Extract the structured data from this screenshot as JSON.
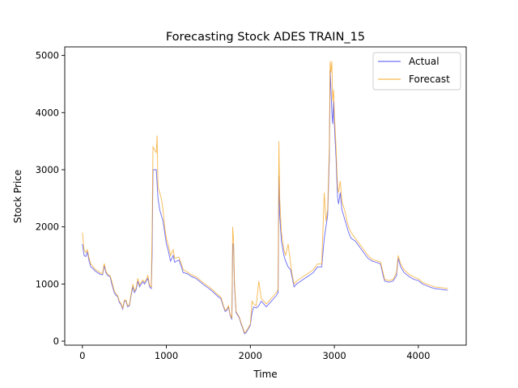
{
  "chart_data": {
    "type": "line",
    "title": "Forecasting Stock ADES TRAIN_15",
    "xlabel": "Time",
    "ylabel": "Stock Price",
    "xlim": [
      -210,
      4570
    ],
    "ylim": [
      -70,
      5150
    ],
    "xticks": [
      0,
      1000,
      2000,
      3000,
      4000
    ],
    "yticks": [
      0,
      1000,
      2000,
      3000,
      4000,
      5000
    ],
    "grid": false,
    "legend_position": "top-right",
    "series": [
      {
        "name": "Actual",
        "color": "#4d4df2",
        "points": [
          [
            0,
            1700
          ],
          [
            20,
            1500
          ],
          [
            40,
            1480
          ],
          [
            60,
            1560
          ],
          [
            80,
            1400
          ],
          [
            100,
            1300
          ],
          [
            120,
            1280
          ],
          [
            150,
            1230
          ],
          [
            180,
            1200
          ],
          [
            210,
            1170
          ],
          [
            240,
            1160
          ],
          [
            260,
            1320
          ],
          [
            280,
            1200
          ],
          [
            300,
            1150
          ],
          [
            330,
            1130
          ],
          [
            350,
            1000
          ],
          [
            380,
            850
          ],
          [
            400,
            800
          ],
          [
            420,
            780
          ],
          [
            440,
            680
          ],
          [
            460,
            640
          ],
          [
            480,
            560
          ],
          [
            500,
            700
          ],
          [
            520,
            700
          ],
          [
            540,
            600
          ],
          [
            560,
            620
          ],
          [
            580,
            800
          ],
          [
            600,
            950
          ],
          [
            620,
            850
          ],
          [
            640,
            900
          ],
          [
            660,
            1050
          ],
          [
            680,
            950
          ],
          [
            700,
            1000
          ],
          [
            720,
            1040
          ],
          [
            740,
            1000
          ],
          [
            760,
            1050
          ],
          [
            780,
            1100
          ],
          [
            800,
            950
          ],
          [
            820,
            920
          ],
          [
            830,
            1500
          ],
          [
            840,
            3000
          ],
          [
            880,
            3000
          ],
          [
            900,
            2500
          ],
          [
            920,
            2300
          ],
          [
            940,
            2200
          ],
          [
            960,
            2100
          ],
          [
            980,
            1900
          ],
          [
            1000,
            1700
          ],
          [
            1020,
            1600
          ],
          [
            1050,
            1400
          ],
          [
            1080,
            1500
          ],
          [
            1100,
            1380
          ],
          [
            1120,
            1400
          ],
          [
            1150,
            1420
          ],
          [
            1180,
            1300
          ],
          [
            1200,
            1200
          ],
          [
            1250,
            1180
          ],
          [
            1300,
            1130
          ],
          [
            1350,
            1100
          ],
          [
            1400,
            1040
          ],
          [
            1450,
            980
          ],
          [
            1500,
            930
          ],
          [
            1550,
            870
          ],
          [
            1600,
            800
          ],
          [
            1650,
            740
          ],
          [
            1680,
            600
          ],
          [
            1700,
            520
          ],
          [
            1720,
            540
          ],
          [
            1740,
            600
          ],
          [
            1760,
            450
          ],
          [
            1780,
            380
          ],
          [
            1790,
            1700
          ],
          [
            1800,
            1700
          ],
          [
            1810,
            1000
          ],
          [
            1830,
            500
          ],
          [
            1850,
            450
          ],
          [
            1870,
            400
          ],
          [
            1890,
            300
          ],
          [
            1910,
            220
          ],
          [
            1930,
            130
          ],
          [
            1950,
            150
          ],
          [
            1970,
            200
          ],
          [
            2000,
            280
          ],
          [
            2020,
            500
          ],
          [
            2040,
            600
          ],
          [
            2070,
            580
          ],
          [
            2100,
            620
          ],
          [
            2130,
            700
          ],
          [
            2160,
            650
          ],
          [
            2190,
            600
          ],
          [
            2220,
            650
          ],
          [
            2250,
            700
          ],
          [
            2280,
            750
          ],
          [
            2310,
            800
          ],
          [
            2330,
            850
          ],
          [
            2340,
            2900
          ],
          [
            2350,
            2200
          ],
          [
            2370,
            1750
          ],
          [
            2400,
            1500
          ],
          [
            2420,
            1400
          ],
          [
            2450,
            1300
          ],
          [
            2480,
            1250
          ],
          [
            2500,
            1100
          ],
          [
            2520,
            950
          ],
          [
            2550,
            1000
          ],
          [
            2600,
            1050
          ],
          [
            2650,
            1100
          ],
          [
            2700,
            1150
          ],
          [
            2750,
            1200
          ],
          [
            2800,
            1300
          ],
          [
            2850,
            1300
          ],
          [
            2880,
            1800
          ],
          [
            2900,
            2000
          ],
          [
            2920,
            2200
          ],
          [
            2940,
            3200
          ],
          [
            2950,
            4750
          ],
          [
            2960,
            4400
          ],
          [
            2970,
            4000
          ],
          [
            2980,
            3800
          ],
          [
            2990,
            4200
          ],
          [
            3000,
            3800
          ],
          [
            3010,
            3500
          ],
          [
            3020,
            3200
          ],
          [
            3030,
            2800
          ],
          [
            3040,
            2500
          ],
          [
            3050,
            2400
          ],
          [
            3070,
            2600
          ],
          [
            3090,
            2300
          ],
          [
            3110,
            2200
          ],
          [
            3130,
            2100
          ],
          [
            3150,
            2000
          ],
          [
            3170,
            1900
          ],
          [
            3200,
            1800
          ],
          [
            3250,
            1750
          ],
          [
            3300,
            1650
          ],
          [
            3350,
            1550
          ],
          [
            3400,
            1450
          ],
          [
            3450,
            1400
          ],
          [
            3500,
            1380
          ],
          [
            3550,
            1350
          ],
          [
            3580,
            1150
          ],
          [
            3600,
            1050
          ],
          [
            3650,
            1030
          ],
          [
            3700,
            1050
          ],
          [
            3740,
            1150
          ],
          [
            3760,
            1450
          ],
          [
            3790,
            1300
          ],
          [
            3830,
            1200
          ],
          [
            3900,
            1120
          ],
          [
            3950,
            1080
          ],
          [
            4000,
            1060
          ],
          [
            4050,
            1000
          ],
          [
            4100,
            970
          ],
          [
            4150,
            940
          ],
          [
            4200,
            920
          ],
          [
            4250,
            910
          ],
          [
            4300,
            900
          ],
          [
            4350,
            890
          ]
        ]
      },
      {
        "name": "Forecast",
        "color": "#f5a623",
        "points": [
          [
            0,
            1900
          ],
          [
            20,
            1600
          ],
          [
            40,
            1550
          ],
          [
            60,
            1600
          ],
          [
            80,
            1450
          ],
          [
            100,
            1350
          ],
          [
            120,
            1320
          ],
          [
            150,
            1260
          ],
          [
            180,
            1230
          ],
          [
            210,
            1200
          ],
          [
            240,
            1180
          ],
          [
            260,
            1360
          ],
          [
            280,
            1230
          ],
          [
            300,
            1170
          ],
          [
            330,
            1150
          ],
          [
            350,
            1050
          ],
          [
            380,
            880
          ],
          [
            400,
            830
          ],
          [
            420,
            800
          ],
          [
            440,
            700
          ],
          [
            460,
            660
          ],
          [
            480,
            580
          ],
          [
            500,
            720
          ],
          [
            520,
            720
          ],
          [
            540,
            620
          ],
          [
            560,
            640
          ],
          [
            580,
            830
          ],
          [
            600,
            1000
          ],
          [
            620,
            880
          ],
          [
            640,
            930
          ],
          [
            660,
            1100
          ],
          [
            680,
            980
          ],
          [
            700,
            1030
          ],
          [
            720,
            1070
          ],
          [
            740,
            1030
          ],
          [
            760,
            1080
          ],
          [
            780,
            1150
          ],
          [
            800,
            980
          ],
          [
            820,
            950
          ],
          [
            830,
            1900
          ],
          [
            840,
            3400
          ],
          [
            880,
            3300
          ],
          [
            890,
            3600
          ],
          [
            900,
            2700
          ],
          [
            920,
            2600
          ],
          [
            940,
            2500
          ],
          [
            960,
            2300
          ],
          [
            980,
            2000
          ],
          [
            1000,
            1800
          ],
          [
            1020,
            1700
          ],
          [
            1050,
            1500
          ],
          [
            1080,
            1600
          ],
          [
            1100,
            1450
          ],
          [
            1120,
            1460
          ],
          [
            1150,
            1470
          ],
          [
            1180,
            1350
          ],
          [
            1200,
            1250
          ],
          [
            1250,
            1210
          ],
          [
            1300,
            1160
          ],
          [
            1350,
            1130
          ],
          [
            1400,
            1070
          ],
          [
            1450,
            1010
          ],
          [
            1500,
            960
          ],
          [
            1550,
            900
          ],
          [
            1600,
            830
          ],
          [
            1650,
            770
          ],
          [
            1680,
            620
          ],
          [
            1700,
            540
          ],
          [
            1720,
            560
          ],
          [
            1740,
            620
          ],
          [
            1760,
            470
          ],
          [
            1780,
            400
          ],
          [
            1790,
            2000
          ],
          [
            1800,
            1750
          ],
          [
            1810,
            1050
          ],
          [
            1830,
            520
          ],
          [
            1850,
            470
          ],
          [
            1870,
            420
          ],
          [
            1890,
            320
          ],
          [
            1910,
            240
          ],
          [
            1930,
            150
          ],
          [
            1950,
            170
          ],
          [
            1970,
            220
          ],
          [
            2000,
            300
          ],
          [
            2020,
            700
          ],
          [
            2040,
            650
          ],
          [
            2070,
            620
          ],
          [
            2100,
            1050
          ],
          [
            2130,
            750
          ],
          [
            2160,
            700
          ],
          [
            2190,
            650
          ],
          [
            2220,
            700
          ],
          [
            2250,
            750
          ],
          [
            2280,
            800
          ],
          [
            2310,
            850
          ],
          [
            2330,
            900
          ],
          [
            2340,
            3500
          ],
          [
            2350,
            2500
          ],
          [
            2370,
            1900
          ],
          [
            2400,
            1600
          ],
          [
            2420,
            1500
          ],
          [
            2450,
            1700
          ],
          [
            2480,
            1350
          ],
          [
            2500,
            1150
          ],
          [
            2520,
            1000
          ],
          [
            2550,
            1050
          ],
          [
            2600,
            1100
          ],
          [
            2650,
            1150
          ],
          [
            2700,
            1200
          ],
          [
            2750,
            1250
          ],
          [
            2800,
            1350
          ],
          [
            2850,
            1350
          ],
          [
            2880,
            2600
          ],
          [
            2900,
            2100
          ],
          [
            2920,
            2300
          ],
          [
            2940,
            3400
          ],
          [
            2950,
            4900
          ],
          [
            2960,
            4700
          ],
          [
            2970,
            4900
          ],
          [
            2980,
            4200
          ],
          [
            2990,
            4400
          ],
          [
            3000,
            4000
          ],
          [
            3010,
            3700
          ],
          [
            3020,
            3400
          ],
          [
            3030,
            3000
          ],
          [
            3040,
            2700
          ],
          [
            3050,
            2600
          ],
          [
            3070,
            2800
          ],
          [
            3090,
            2450
          ],
          [
            3110,
            2350
          ],
          [
            3130,
            2250
          ],
          [
            3150,
            2100
          ],
          [
            3170,
            2000
          ],
          [
            3200,
            1900
          ],
          [
            3250,
            1800
          ],
          [
            3300,
            1700
          ],
          [
            3350,
            1600
          ],
          [
            3400,
            1500
          ],
          [
            3450,
            1430
          ],
          [
            3500,
            1410
          ],
          [
            3550,
            1380
          ],
          [
            3580,
            1200
          ],
          [
            3600,
            1080
          ],
          [
            3650,
            1060
          ],
          [
            3700,
            1080
          ],
          [
            3740,
            1200
          ],
          [
            3760,
            1500
          ],
          [
            3790,
            1350
          ],
          [
            3830,
            1250
          ],
          [
            3900,
            1160
          ],
          [
            3950,
            1120
          ],
          [
            4000,
            1090
          ],
          [
            4050,
            1030
          ],
          [
            4100,
            1000
          ],
          [
            4150,
            970
          ],
          [
            4200,
            950
          ],
          [
            4250,
            940
          ],
          [
            4300,
            930
          ],
          [
            4350,
            920
          ]
        ]
      }
    ]
  }
}
